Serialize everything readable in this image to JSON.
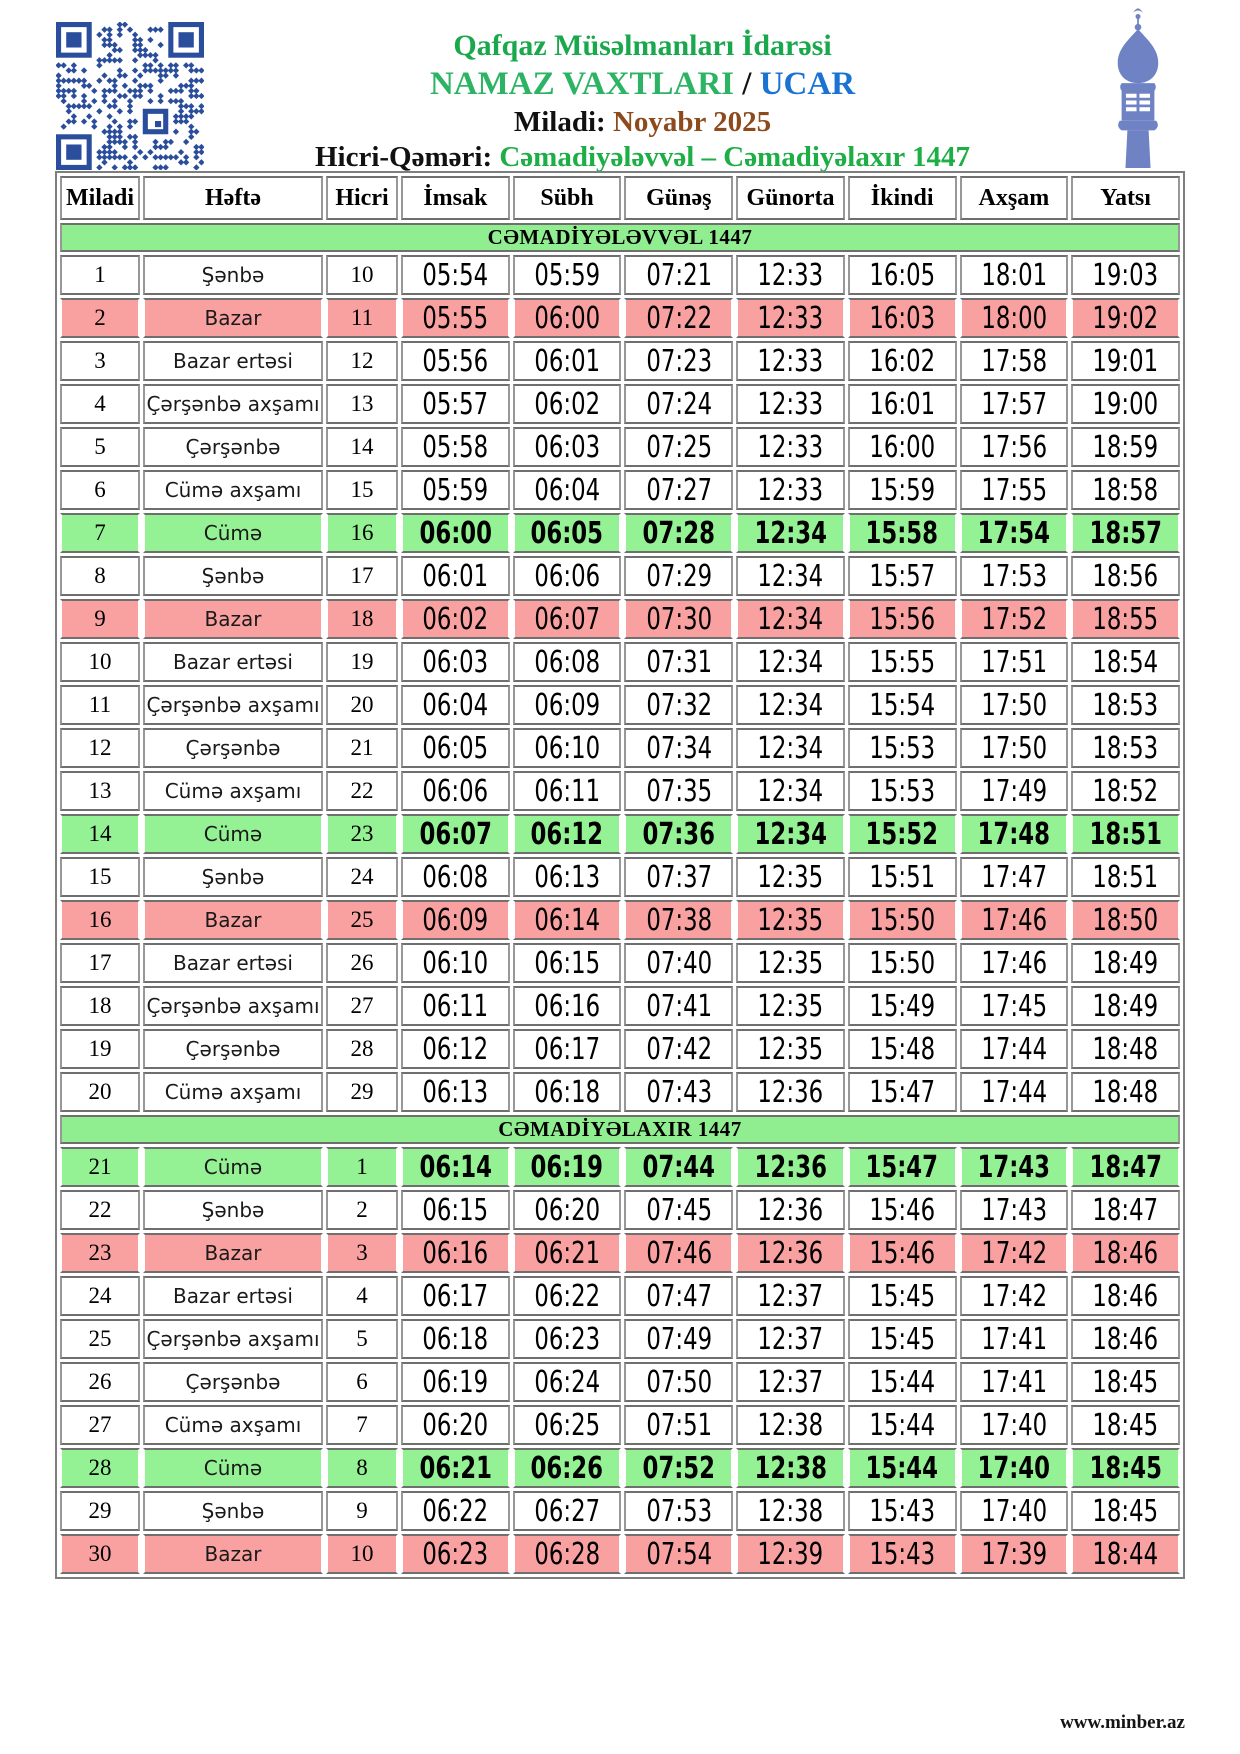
{
  "header": {
    "org": "Qafqaz Müsəlmanları İdarəsi",
    "title": "NAMAZ VAXTLARI",
    "separator": " / ",
    "city": "UCAR",
    "miladi_label": "Miladi: ",
    "miladi_value": "Noyabr 2025",
    "hicri_label": "Hicri-Qəməri: ",
    "hicri_value": "Cəmadiyələvvəl – Cəmadiyəlaxır 1447"
  },
  "columns": [
    "Miladi",
    "Həftə",
    "Hicri",
    "İmsak",
    "Sübh",
    "Günəş",
    "Günorta",
    "İkindi",
    "Axşam",
    "Yatsı"
  ],
  "sections": [
    {
      "title": "CƏMADİYƏLƏVVƏL 1447",
      "rows": [
        {
          "miladi": 1,
          "hefte": "Şənbə",
          "hicri": 10,
          "times": [
            "05:54",
            "05:59",
            "07:21",
            "12:33",
            "16:05",
            "18:01",
            "19:03"
          ],
          "highlight": "none"
        },
        {
          "miladi": 2,
          "hefte": "Bazar",
          "hicri": 11,
          "times": [
            "05:55",
            "06:00",
            "07:22",
            "12:33",
            "16:03",
            "18:00",
            "19:02"
          ],
          "highlight": "sunday"
        },
        {
          "miladi": 3,
          "hefte": "Bazar ertəsi",
          "hicri": 12,
          "times": [
            "05:56",
            "06:01",
            "07:23",
            "12:33",
            "16:02",
            "17:58",
            "19:01"
          ],
          "highlight": "none"
        },
        {
          "miladi": 4,
          "hefte": "Çərşənbə axşamı",
          "hicri": 13,
          "times": [
            "05:57",
            "06:02",
            "07:24",
            "12:33",
            "16:01",
            "17:57",
            "19:00"
          ],
          "highlight": "none"
        },
        {
          "miladi": 5,
          "hefte": "Çərşənbə",
          "hicri": 14,
          "times": [
            "05:58",
            "06:03",
            "07:25",
            "12:33",
            "16:00",
            "17:56",
            "18:59"
          ],
          "highlight": "none"
        },
        {
          "miladi": 6,
          "hefte": "Cümə axşamı",
          "hicri": 15,
          "times": [
            "05:59",
            "06:04",
            "07:27",
            "12:33",
            "15:59",
            "17:55",
            "18:58"
          ],
          "highlight": "none"
        },
        {
          "miladi": 7,
          "hefte": "Cümə",
          "hicri": 16,
          "times": [
            "06:00",
            "06:05",
            "07:28",
            "12:34",
            "15:58",
            "17:54",
            "18:57"
          ],
          "highlight": "friday"
        },
        {
          "miladi": 8,
          "hefte": "Şənbə",
          "hicri": 17,
          "times": [
            "06:01",
            "06:06",
            "07:29",
            "12:34",
            "15:57",
            "17:53",
            "18:56"
          ],
          "highlight": "none"
        },
        {
          "miladi": 9,
          "hefte": "Bazar",
          "hicri": 18,
          "times": [
            "06:02",
            "06:07",
            "07:30",
            "12:34",
            "15:56",
            "17:52",
            "18:55"
          ],
          "highlight": "sunday"
        },
        {
          "miladi": 10,
          "hefte": "Bazar ertəsi",
          "hicri": 19,
          "times": [
            "06:03",
            "06:08",
            "07:31",
            "12:34",
            "15:55",
            "17:51",
            "18:54"
          ],
          "highlight": "none"
        },
        {
          "miladi": 11,
          "hefte": "Çərşənbə axşamı",
          "hicri": 20,
          "times": [
            "06:04",
            "06:09",
            "07:32",
            "12:34",
            "15:54",
            "17:50",
            "18:53"
          ],
          "highlight": "none"
        },
        {
          "miladi": 12,
          "hefte": "Çərşənbə",
          "hicri": 21,
          "times": [
            "06:05",
            "06:10",
            "07:34",
            "12:34",
            "15:53",
            "17:50",
            "18:53"
          ],
          "highlight": "none"
        },
        {
          "miladi": 13,
          "hefte": "Cümə axşamı",
          "hicri": 22,
          "times": [
            "06:06",
            "06:11",
            "07:35",
            "12:34",
            "15:53",
            "17:49",
            "18:52"
          ],
          "highlight": "none"
        },
        {
          "miladi": 14,
          "hefte": "Cümə",
          "hicri": 23,
          "times": [
            "06:07",
            "06:12",
            "07:36",
            "12:34",
            "15:52",
            "17:48",
            "18:51"
          ],
          "highlight": "friday"
        },
        {
          "miladi": 15,
          "hefte": "Şənbə",
          "hicri": 24,
          "times": [
            "06:08",
            "06:13",
            "07:37",
            "12:35",
            "15:51",
            "17:47",
            "18:51"
          ],
          "highlight": "none"
        },
        {
          "miladi": 16,
          "hefte": "Bazar",
          "hicri": 25,
          "times": [
            "06:09",
            "06:14",
            "07:38",
            "12:35",
            "15:50",
            "17:46",
            "18:50"
          ],
          "highlight": "sunday"
        },
        {
          "miladi": 17,
          "hefte": "Bazar ertəsi",
          "hicri": 26,
          "times": [
            "06:10",
            "06:15",
            "07:40",
            "12:35",
            "15:50",
            "17:46",
            "18:49"
          ],
          "highlight": "none"
        },
        {
          "miladi": 18,
          "hefte": "Çərşənbə axşamı",
          "hicri": 27,
          "times": [
            "06:11",
            "06:16",
            "07:41",
            "12:35",
            "15:49",
            "17:45",
            "18:49"
          ],
          "highlight": "none"
        },
        {
          "miladi": 19,
          "hefte": "Çərşənbə",
          "hicri": 28,
          "times": [
            "06:12",
            "06:17",
            "07:42",
            "12:35",
            "15:48",
            "17:44",
            "18:48"
          ],
          "highlight": "none"
        },
        {
          "miladi": 20,
          "hefte": "Cümə axşamı",
          "hicri": 29,
          "times": [
            "06:13",
            "06:18",
            "07:43",
            "12:36",
            "15:47",
            "17:44",
            "18:48"
          ],
          "highlight": "none"
        }
      ]
    },
    {
      "title": "CƏMADİYƏLAXIR 1447",
      "rows": [
        {
          "miladi": 21,
          "hefte": "Cümə",
          "hicri": 1,
          "times": [
            "06:14",
            "06:19",
            "07:44",
            "12:36",
            "15:47",
            "17:43",
            "18:47"
          ],
          "highlight": "friday"
        },
        {
          "miladi": 22,
          "hefte": "Şənbə",
          "hicri": 2,
          "times": [
            "06:15",
            "06:20",
            "07:45",
            "12:36",
            "15:46",
            "17:43",
            "18:47"
          ],
          "highlight": "none"
        },
        {
          "miladi": 23,
          "hefte": "Bazar",
          "hicri": 3,
          "times": [
            "06:16",
            "06:21",
            "07:46",
            "12:36",
            "15:46",
            "17:42",
            "18:46"
          ],
          "highlight": "sunday"
        },
        {
          "miladi": 24,
          "hefte": "Bazar ertəsi",
          "hicri": 4,
          "times": [
            "06:17",
            "06:22",
            "07:47",
            "12:37",
            "15:45",
            "17:42",
            "18:46"
          ],
          "highlight": "none"
        },
        {
          "miladi": 25,
          "hefte": "Çərşənbə axşamı",
          "hicri": 5,
          "times": [
            "06:18",
            "06:23",
            "07:49",
            "12:37",
            "15:45",
            "17:41",
            "18:46"
          ],
          "highlight": "none"
        },
        {
          "miladi": 26,
          "hefte": "Çərşənbə",
          "hicri": 6,
          "times": [
            "06:19",
            "06:24",
            "07:50",
            "12:37",
            "15:44",
            "17:41",
            "18:45"
          ],
          "highlight": "none"
        },
        {
          "miladi": 27,
          "hefte": "Cümə axşamı",
          "hicri": 7,
          "times": [
            "06:20",
            "06:25",
            "07:51",
            "12:38",
            "15:44",
            "17:40",
            "18:45"
          ],
          "highlight": "none"
        },
        {
          "miladi": 28,
          "hefte": "Cümə",
          "hicri": 8,
          "times": [
            "06:21",
            "06:26",
            "07:52",
            "12:38",
            "15:44",
            "17:40",
            "18:45"
          ],
          "highlight": "friday"
        },
        {
          "miladi": 29,
          "hefte": "Şənbə",
          "hicri": 9,
          "times": [
            "06:22",
            "06:27",
            "07:53",
            "12:38",
            "15:43",
            "17:40",
            "18:45"
          ],
          "highlight": "none"
        },
        {
          "miladi": 30,
          "hefte": "Bazar",
          "hicri": 10,
          "times": [
            "06:23",
            "06:28",
            "07:54",
            "12:39",
            "15:43",
            "17:39",
            "18:44"
          ],
          "highlight": "sunday"
        }
      ]
    }
  ],
  "footer": {
    "url": "www.minber.az"
  },
  "colors": {
    "title_green": "#1AA84C",
    "namaz_green": "#2CB464",
    "city_blue": "#1A73D3",
    "month_brown": "#8C4A1D",
    "hicri_green": "#1EAE46",
    "sunday_row": "#F9A0A0",
    "friday_row": "#94F294",
    "section_header": "#90EE90",
    "qr_blue": "#2B4E9C",
    "minaret_blue": "#6F83C4"
  }
}
